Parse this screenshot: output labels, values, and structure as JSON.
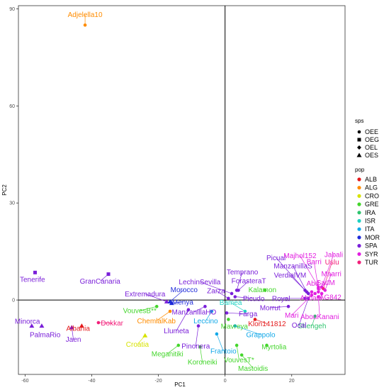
{
  "chart_data": {
    "type": "scatter",
    "xlabel": "PC1",
    "ylabel": "PC2",
    "xlim": [
      -62,
      36
    ],
    "ylim": [
      -23,
      91
    ],
    "x_ticks": [
      "-60",
      "-40",
      "-20",
      "0",
      "20"
    ],
    "y_ticks": [
      "0",
      "30",
      "60",
      "90"
    ],
    "x_tick_values": [
      -60,
      -40,
      -20,
      0,
      20
    ],
    "y_tick_values": [
      0,
      30,
      60,
      90
    ],
    "grid": false,
    "reference_lines": {
      "x": 0,
      "y": 0
    },
    "legend_sps": {
      "title": "sps",
      "items": [
        {
          "label": "OEE",
          "shape": "circle"
        },
        {
          "label": "OEG",
          "shape": "square"
        },
        {
          "label": "OEL",
          "shape": "diamond"
        },
        {
          "label": "OES",
          "shape": "triangle"
        }
      ]
    },
    "legend_pop": {
      "title": "pop",
      "items": [
        {
          "label": "ALB",
          "color": "#e41a1c"
        },
        {
          "label": "ALG",
          "color": "#ff8c00"
        },
        {
          "label": "CRO",
          "color": "#d7e300"
        },
        {
          "label": "GRE",
          "color": "#44d62c"
        },
        {
          "label": "IRA",
          "color": "#2ec46e"
        },
        {
          "label": "ISR",
          "color": "#1fd2c2"
        },
        {
          "label": "ITA",
          "color": "#12a8e8"
        },
        {
          "label": "MOR",
          "color": "#1f2bd9"
        },
        {
          "label": "SPA",
          "color": "#7a1fd9"
        },
        {
          "label": "SYR",
          "color": "#e21fe0"
        },
        {
          "label": "TUR",
          "color": "#f21f7a"
        }
      ]
    },
    "points": [
      {
        "label": "Adjelella10",
        "x": -42,
        "y": 85,
        "pop": "ALG",
        "shape": "circle",
        "lx": -42,
        "ly": 88.3
      },
      {
        "label": "Tenerife",
        "x": -57,
        "y": 8.5,
        "pop": "SPA",
        "shape": "square",
        "lx": -57.8,
        "ly": 6.4
      },
      {
        "label": "GranCanaria",
        "x": -35,
        "y": 8,
        "pop": "SPA",
        "shape": "square",
        "lx": -37.5,
        "ly": 5.8
      },
      {
        "label": "Extremadura",
        "x": -17.5,
        "y": -0.5,
        "pop": "SPA",
        "shape": "triangle",
        "lx": -24,
        "ly": 1.9
      },
      {
        "label": "Morocco",
        "x": -16.5,
        "y": -0.5,
        "pop": "MOR",
        "shape": "triangle",
        "lx": -12.3,
        "ly": 3.2
      },
      {
        "label": "Menya",
        "x": -16,
        "y": -1,
        "pop": "MOR",
        "shape": "triangle",
        "lx": -12.7,
        "ly": -0.6
      },
      {
        "label": "VouvesB**",
        "x": -20.5,
        "y": -2,
        "pop": "GRE",
        "shape": "circle",
        "lx": -25.6,
        "ly": -3.3
      },
      {
        "label": "ChemlalKab",
        "x": -16.5,
        "y": -3.5,
        "pop": "ALG",
        "shape": "circle",
        "lx": -20.6,
        "ly": -6.4
      },
      {
        "label": "ManzanillaHO",
        "x": -6,
        "y": -2,
        "pop": "SPA",
        "shape": "circle",
        "lx": -9.3,
        "ly": -3.7
      },
      {
        "label": "Leccino",
        "x": -4,
        "y": -3.5,
        "pop": "ITA",
        "shape": "circle",
        "lx": -5.8,
        "ly": -6.4
      },
      {
        "label": "Llumeta",
        "x": -11,
        "y": -3,
        "pop": "SPA",
        "shape": "circle",
        "lx": -14.6,
        "ly": -9.5
      },
      {
        "label": "Pinonera",
        "x": -8,
        "y": -8,
        "pop": "SPA",
        "shape": "circle",
        "lx": -8.8,
        "ly": -14.2
      },
      {
        "label": "Meganitiki",
        "x": -14,
        "y": -14,
        "pop": "GRE",
        "shape": "circle",
        "lx": -17.3,
        "ly": -16.6
      },
      {
        "label": "Koroneiki",
        "x": -7.5,
        "y": -14.5,
        "pop": "GRE",
        "shape": "circle",
        "lx": -6.8,
        "ly": -19.2
      },
      {
        "label": "Frantoio",
        "x": -2.5,
        "y": -10.5,
        "pop": "ITA",
        "shape": "circle",
        "lx": -0.5,
        "ly": -15.8
      },
      {
        "label": "Croatia",
        "x": -24,
        "y": -11,
        "pop": "CRO",
        "shape": "triangle",
        "lx": -26.3,
        "ly": -13.7
      },
      {
        "label": "Minorca",
        "x": -58,
        "y": -8,
        "pop": "SPA",
        "shape": "triangle",
        "lx": -59.3,
        "ly": -6.6
      },
      {
        "label": "PalmaRio",
        "x": -55,
        "y": -8,
        "pop": "SPA",
        "shape": "triangle",
        "lx": -54,
        "ly": -10.7
      },
      {
        "label": "Albania",
        "x": -43,
        "y": -8,
        "pop": "ALB",
        "shape": "triangle",
        "lx": -44.1,
        "ly": -8.7
      },
      {
        "label": "Jaen",
        "x": -46,
        "y": -8.5,
        "pop": "SPA",
        "shape": "triangle",
        "lx": -45.5,
        "ly": -12.2
      },
      {
        "label": "Dokkar",
        "x": -38,
        "y": -7,
        "pop": "TUR",
        "shape": "circle",
        "lx": -33.9,
        "ly": -7.1
      },
      {
        "label": "LechinSevilla",
        "x": 2,
        "y": 2,
        "pop": "SPA",
        "shape": "circle",
        "lx": -7.6,
        "ly": 5.6
      },
      {
        "label": "Zarza",
        "x": 1,
        "y": 0.5,
        "pop": "SPA",
        "shape": "circle",
        "lx": -2.7,
        "ly": 2.9
      },
      {
        "label": "Picudo",
        "x": 3,
        "y": 1,
        "pop": "SPA",
        "shape": "circle",
        "lx": 8.6,
        "ly": 0.5
      },
      {
        "label": "Bamea",
        "x": 6,
        "y": -3.5,
        "pop": "ISR",
        "shape": "circle",
        "lx": 1.7,
        "ly": -0.8
      },
      {
        "label": "Farga",
        "x": 0.5,
        "y": -4,
        "pop": "SPA",
        "shape": "circle",
        "lx": 6.9,
        "ly": -4.3
      },
      {
        "label": "Mavreya",
        "x": 1,
        "y": -6,
        "pop": "GRE",
        "shape": "circle",
        "lx": 2.8,
        "ly": -8.1
      },
      {
        "label": "Grappolo",
        "x": 3,
        "y": -8,
        "pop": "ITA",
        "shape": "circle",
        "lx": 10.7,
        "ly": -10.7
      },
      {
        "label": "Klon141812",
        "x": 9,
        "y": -6,
        "pop": "ALB",
        "shape": "circle",
        "lx": 12.6,
        "ly": -7.3
      },
      {
        "label": "VouvesT*",
        "x": 3.5,
        "y": -14,
        "pop": "GRE",
        "shape": "circle",
        "lx": 4.2,
        "ly": -18.5
      },
      {
        "label": "Mastoidis",
        "x": 5,
        "y": -17,
        "pop": "GRE",
        "shape": "circle",
        "lx": 8.4,
        "ly": -21.1
      },
      {
        "label": "Myrtolia",
        "x": 12.5,
        "y": -14,
        "pop": "GRE",
        "shape": "circle",
        "lx": 14.7,
        "ly": -14.4
      },
      {
        "label": "Kalamon",
        "x": 12,
        "y": 3,
        "pop": "GRE",
        "shape": "circle",
        "lx": 11.2,
        "ly": 3.2
      },
      {
        "label": "Temprano",
        "x": 3.5,
        "y": 3,
        "pop": "SPA",
        "shape": "circle",
        "lx": 5.2,
        "ly": 8.7
      },
      {
        "label": "ForasteraT",
        "x": 4,
        "y": 3,
        "pop": "SPA",
        "shape": "circle",
        "lx": 7.1,
        "ly": 5.9
      },
      {
        "label": "Picual",
        "x": 24,
        "y": 3,
        "pop": "SPA",
        "shape": "circle",
        "lx": 15.3,
        "ly": 13.1
      },
      {
        "label": "ManzanillaS",
        "x": 24.5,
        "y": 2.5,
        "pop": "SPA",
        "shape": "circle",
        "lx": 20.4,
        "ly": 10.5
      },
      {
        "label": "VerdialVM",
        "x": 25,
        "y": 2,
        "pop": "SPA",
        "shape": "circle",
        "lx": 19.5,
        "ly": 7.7
      },
      {
        "label": "Royal",
        "x": 24,
        "y": 0.5,
        "pop": "SPA",
        "shape": "circle",
        "lx": 16.8,
        "ly": 0.5
      },
      {
        "label": "Morrut",
        "x": 19,
        "y": -2,
        "pop": "SPA",
        "shape": "circle",
        "lx": 13.5,
        "ly": -2.4
      },
      {
        "label": "Majhol152",
        "x": 28,
        "y": 4,
        "pop": "SYR",
        "shape": "circle",
        "lx": 22.5,
        "ly": 13.7
      },
      {
        "label": "Jabali",
        "x": 29,
        "y": 4,
        "pop": "SYR",
        "shape": "circle",
        "lx": 32.6,
        "ly": 14.1
      },
      {
        "label": "Barri",
        "x": 28,
        "y": 3.5,
        "pop": "SYR",
        "shape": "circle",
        "lx": 26.7,
        "ly": 11.9
      },
      {
        "label": "Uslu",
        "x": 29.5,
        "y": 3.5,
        "pop": "TUR",
        "shape": "circle",
        "lx": 32.1,
        "ly": 11.7
      },
      {
        "label": "Maarri",
        "x": 30,
        "y": 3,
        "pop": "SYR",
        "shape": "circle",
        "lx": 31.9,
        "ly": 8.1
      },
      {
        "label": "Abd",
        "x": 26,
        "y": 2.5,
        "pop": "SYR",
        "shape": "circle",
        "lx": 26.3,
        "ly": 5.2
      },
      {
        "label": "SatIM",
        "x": 28,
        "y": 2.5,
        "pop": "SYR",
        "shape": "circle",
        "lx": 30.2,
        "ly": 5.4
      },
      {
        "label": "Abbadi",
        "x": 27,
        "y": 2,
        "pop": "SYR",
        "shape": "circle",
        "lx": 25.8,
        "ly": 0.7
      },
      {
        "label": "AG842",
        "x": 29,
        "y": 2,
        "pop": "SYR",
        "shape": "circle",
        "lx": 31.6,
        "ly": 0.9
      },
      {
        "label": "Mari",
        "x": 26,
        "y": 1.5,
        "pop": "SYR",
        "shape": "circle",
        "lx": 20,
        "ly": -4.7
      },
      {
        "label": "Shengeh",
        "x": 27,
        "y": -5,
        "pop": "IRA",
        "shape": "circle",
        "lx": 26.1,
        "ly": -8
      },
      {
        "label": "AbouKanani",
        "x": 28,
        "y": 1,
        "pop": "SYR",
        "shape": "circle",
        "lx": 28.4,
        "ly": -5.1
      },
      {
        "label": "Ocal",
        "x": 25,
        "y": 0.5,
        "pop": "SPA",
        "shape": "circle",
        "lx": 22.2,
        "ly": -7.8
      }
    ]
  }
}
